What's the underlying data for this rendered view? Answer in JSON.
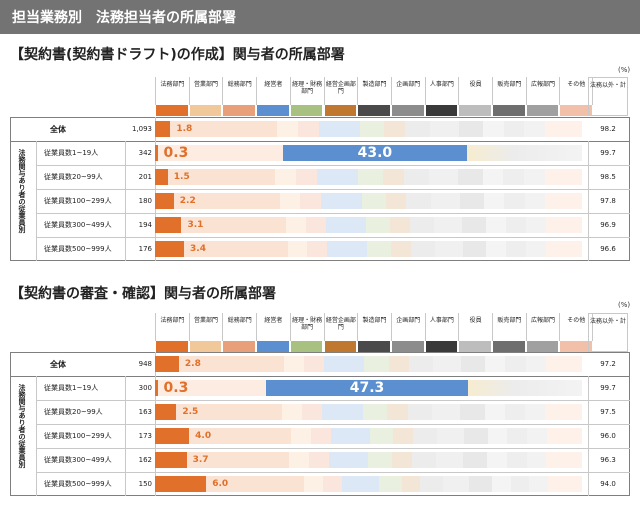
{
  "page": {
    "title": "担当業務別　法務担当者の所属部署"
  },
  "legend": {
    "categories": [
      "法務部門",
      "営業部門",
      "総務部門",
      "経営者",
      "経理・財務部門",
      "経営企画部門",
      "製造部門",
      "企画部門",
      "人事部門",
      "役員",
      "販売部門",
      "広報部門",
      "その他"
    ],
    "colors": [
      "#e0702a",
      "#f0c89a",
      "#e8a07a",
      "#5b8fcf",
      "#a8c080",
      "#c07830",
      "#4a4a4a",
      "#8c8c8c",
      "#3a3a3a",
      "#bdbdbd",
      "#6e6e6e",
      "#a0a0a0",
      "#f2c0a8"
    ],
    "other_header": "法務以外・計",
    "unit": "(%)"
  },
  "labels": {
    "group_vertical": "法務関与あり者の従業員別"
  },
  "chart_data": [
    {
      "type": "bar",
      "title": "【契約書(契約書ドラフト)の作成】関与者の所属部署",
      "rows": [
        "全体",
        "従業員数1~19人",
        "従業員数20~99人",
        "従業員数100~299人",
        "従業員数300~499人",
        "従業員数500~999人"
      ],
      "n": [
        "1,093",
        "342",
        "201",
        "180",
        "194",
        "176"
      ],
      "series": [
        {
          "name": "法務部門",
          "values": [
            1.8,
            0.3,
            1.5,
            2.2,
            3.1,
            3.4
          ]
        },
        {
          "name": "経営者",
          "values": [
            null,
            43.0,
            null,
            null,
            null,
            null
          ]
        }
      ],
      "value_labels": {
        "法務部門": [
          "1.8",
          "0.3",
          "1.5",
          "2.2",
          "3.1",
          "3.4"
        ],
        "経営者": [
          "",
          "43.0",
          "",
          "",
          "",
          ""
        ]
      },
      "other_total": [
        "98.2",
        "99.7",
        "98.5",
        "97.8",
        "96.9",
        "96.6"
      ]
    },
    {
      "type": "bar",
      "title": "【契約書の審査・確認】関与者の所属部署",
      "rows": [
        "全体",
        "従業員数1~19人",
        "従業員数20~99人",
        "従業員数100~299人",
        "従業員数300~499人",
        "従業員数500~999人"
      ],
      "n": [
        "948",
        "300",
        "163",
        "173",
        "162",
        "150"
      ],
      "series": [
        {
          "name": "法務部門",
          "values": [
            2.8,
            0.3,
            2.5,
            4.0,
            3.7,
            6.0
          ]
        },
        {
          "name": "経営者",
          "values": [
            null,
            47.3,
            null,
            null,
            null,
            null
          ]
        }
      ],
      "value_labels": {
        "法務部門": [
          "2.8",
          "0.3",
          "2.5",
          "4.0",
          "3.7",
          "6.0"
        ],
        "経営者": [
          "",
          "47.3",
          "",
          "",
          "",
          ""
        ]
      },
      "other_total": [
        "97.2",
        "99.7",
        "97.5",
        "96.0",
        "96.3",
        "94.0"
      ]
    }
  ]
}
